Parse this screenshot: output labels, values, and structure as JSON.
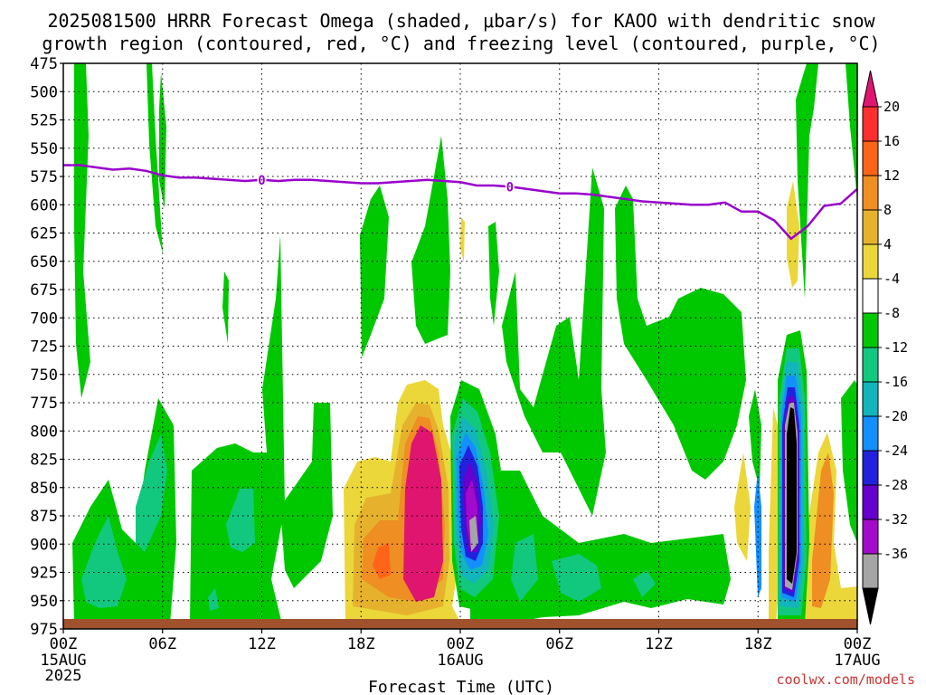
{
  "chart_data": {
    "type": "heatmap",
    "title_line1": "2025081500 HRRR Forecast Omega (shaded, μbar/s) for KAOO with dendritic snow",
    "title_line2": "growth region (contoured, red, °C) and freezing level (contoured, purple, °C)",
    "xlabel": "Forecast Time (UTC)",
    "x_ticks": [
      "00Z",
      "06Z",
      "12Z",
      "18Z",
      "00Z",
      "06Z",
      "12Z",
      "18Z",
      "00Z"
    ],
    "x_tick_hours": [
      0,
      6,
      12,
      18,
      24,
      30,
      36,
      42,
      48
    ],
    "x_date_labels": [
      {
        "hour": 0,
        "lines": [
          "15AUG",
          "2025"
        ]
      },
      {
        "hour": 24,
        "lines": [
          "16AUG"
        ]
      },
      {
        "hour": 48,
        "lines": [
          "17AUG"
        ]
      }
    ],
    "xlim": [
      0,
      48
    ],
    "y_ticks": [
      475,
      500,
      525,
      550,
      575,
      600,
      625,
      650,
      675,
      700,
      725,
      750,
      775,
      800,
      825,
      850,
      875,
      900,
      925,
      950,
      975
    ],
    "ylim": [
      475,
      975
    ],
    "grid": true,
    "colorbar": {
      "labels": [
        "20",
        "16",
        "12",
        "8",
        "4",
        "-4",
        "-8",
        "-12",
        "-16",
        "-20",
        "-24",
        "-28",
        "-32",
        "-36"
      ],
      "colors_top_to_bottom": [
        "#e0156f",
        "#ff2f2f",
        "#ff6418",
        "#ee8e23",
        "#e6b22d",
        "#ebd73a",
        "#ffffff",
        "#00c800",
        "#12c87f",
        "#11b5bb",
        "#138fff",
        "#2222dd",
        "#6600cc",
        "#a20bcc",
        "#a5a5a5",
        "#000000"
      ]
    },
    "freezing_level": {
      "label": "0",
      "hours": [
        0,
        1,
        2,
        3,
        4,
        5,
        6,
        7,
        8,
        9,
        10,
        11,
        12,
        13,
        14,
        15,
        16,
        17,
        18,
        19,
        20,
        21,
        22,
        23,
        24,
        25,
        26,
        27,
        28,
        29,
        30,
        31,
        32,
        33,
        34,
        35,
        36,
        37,
        38,
        39,
        40,
        41,
        42,
        43,
        44,
        45,
        46,
        47,
        48
      ],
      "pressure": [
        565,
        565,
        567,
        569,
        568,
        570,
        574,
        576,
        576,
        577,
        578,
        579,
        578,
        579,
        578,
        578,
        579,
        580,
        581,
        581,
        580,
        579,
        578,
        579,
        580,
        583,
        583,
        584,
        586,
        588,
        590,
        590,
        591,
        593,
        595,
        597,
        598,
        599,
        600,
        600,
        598,
        606,
        606,
        614,
        630,
        619,
        601,
        599,
        586
      ],
      "color": "#9900cc"
    },
    "surface_color": "#a0522d",
    "credit": "coolwx.com/models"
  }
}
